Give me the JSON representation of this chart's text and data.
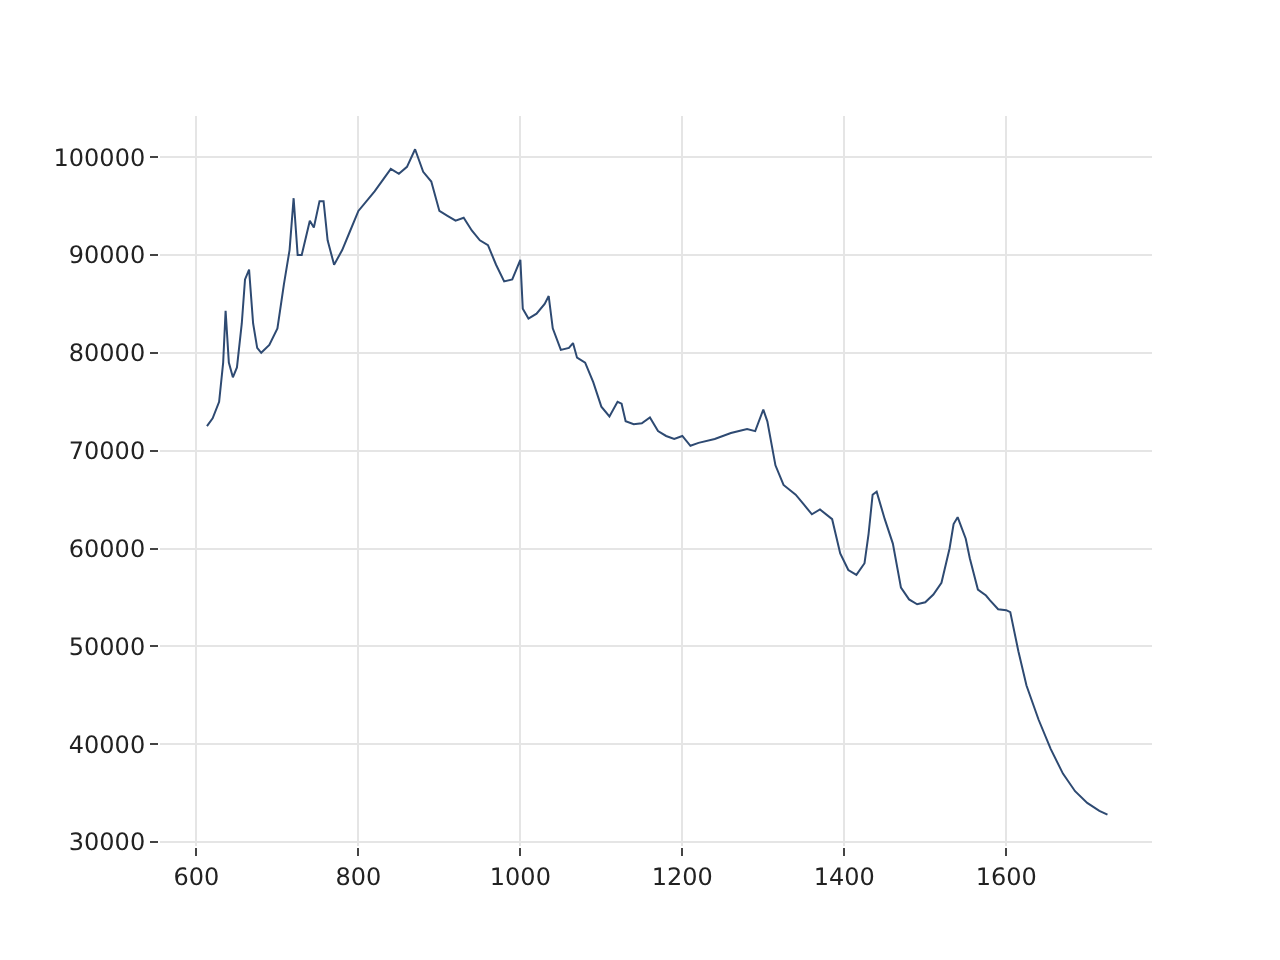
{
  "chart_data": {
    "type": "line",
    "x": [
      613,
      620,
      628,
      633,
      636,
      640,
      645,
      650,
      656,
      660,
      665,
      670,
      675,
      680,
      690,
      700,
      708,
      715,
      720,
      725,
      730,
      740,
      745,
      752,
      757,
      762,
      770,
      780,
      790,
      800,
      820,
      840,
      850,
      860,
      870,
      880,
      890,
      900,
      910,
      920,
      930,
      940,
      950,
      960,
      970,
      980,
      990,
      1000,
      1003,
      1010,
      1020,
      1030,
      1035,
      1040,
      1050,
      1060,
      1065,
      1070,
      1080,
      1090,
      1100,
      1110,
      1120,
      1125,
      1130,
      1140,
      1150,
      1160,
      1170,
      1180,
      1190,
      1200,
      1210,
      1220,
      1240,
      1260,
      1280,
      1290,
      1300,
      1305,
      1315,
      1325,
      1340,
      1350,
      1360,
      1370,
      1385,
      1395,
      1405,
      1415,
      1425,
      1430,
      1435,
      1440,
      1450,
      1460,
      1470,
      1480,
      1490,
      1500,
      1510,
      1520,
      1530,
      1535,
      1540,
      1550,
      1555,
      1565,
      1575,
      1580,
      1590,
      1600,
      1605,
      1615,
      1625,
      1640,
      1655,
      1670,
      1685,
      1700,
      1715,
      1725
    ],
    "series": [
      {
        "color": "#2e4a72",
        "values": [
          72500,
          73300,
          75000,
          79000,
          84300,
          79000,
          77500,
          78500,
          83000,
          87500,
          88500,
          83000,
          80500,
          80000,
          80800,
          82500,
          87000,
          90500,
          95800,
          90000,
          90000,
          93500,
          92800,
          95500,
          95500,
          91500,
          89000,
          90500,
          92500,
          94500,
          96500,
          98800,
          98300,
          99000,
          100800,
          98500,
          97500,
          94500,
          94000,
          93500,
          93800,
          92500,
          91500,
          91000,
          89000,
          87300,
          87500,
          89500,
          84500,
          83500,
          84000,
          85000,
          85800,
          82500,
          80300,
          80500,
          81000,
          79500,
          79000,
          77000,
          74500,
          73500,
          75000,
          74800,
          73000,
          72700,
          72800,
          73400,
          72000,
          71500,
          71200,
          71500,
          70500,
          70800,
          71200,
          71800,
          72200,
          72000,
          74200,
          73000,
          68500,
          66500,
          65500,
          64500,
          63500,
          64000,
          63000,
          59500,
          57800,
          57300,
          58500,
          61500,
          65500,
          65800,
          63000,
          60500,
          56000,
          54800,
          54300,
          54500,
          55300,
          56500,
          60000,
          62500,
          63200,
          61000,
          59000,
          55800,
          55200,
          54700,
          53800,
          53700,
          53500,
          49500,
          46000,
          42500,
          39500,
          37000,
          35200,
          34000,
          33200,
          32800
        ]
      }
    ],
    "xlim": [
      555,
      1780
    ],
    "ylim": [
      29600,
      104200
    ],
    "xticks": [
      600,
      800,
      1000,
      1200,
      1400,
      1600
    ],
    "yticks": [
      30000,
      40000,
      50000,
      60000,
      70000,
      80000,
      90000,
      100000
    ],
    "grid": true
  }
}
